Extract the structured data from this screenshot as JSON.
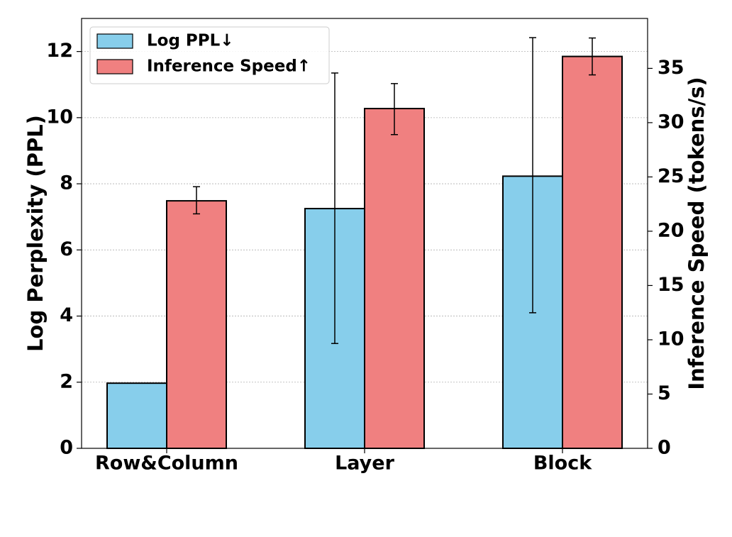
{
  "chart_data": {
    "type": "bar",
    "categories": [
      "Row&Column",
      "Layer",
      "Block"
    ],
    "series": [
      {
        "name": "Log PPL↓",
        "axis": "left",
        "color": "#87CEEB",
        "values": [
          1.97,
          7.25,
          8.23
        ],
        "error": [
          null,
          [
            3.17,
            11.35
          ],
          [
            4.1,
            12.42
          ]
        ]
      },
      {
        "name": "Inference Speed↑",
        "axis": "right",
        "color": "#F08080",
        "values": [
          22.8,
          31.3,
          36.1
        ],
        "error": [
          [
            21.6,
            24.1
          ],
          [
            28.9,
            33.6
          ],
          [
            34.4,
            37.8
          ]
        ]
      }
    ],
    "ylabel": "Log Perplexity (PPL)",
    "ylim": [
      0,
      13
    ],
    "yticks": [
      "0",
      "2",
      "4",
      "6",
      "8",
      "10",
      "12"
    ],
    "y2label": "Inference Speed (tokens/s)",
    "y2lim": [
      0,
      39.6
    ],
    "y2ticks": [
      "0",
      "5",
      "10",
      "15",
      "20",
      "25",
      "30",
      "35"
    ],
    "grid": "horizontal dotted",
    "legend_position": "top-left"
  }
}
